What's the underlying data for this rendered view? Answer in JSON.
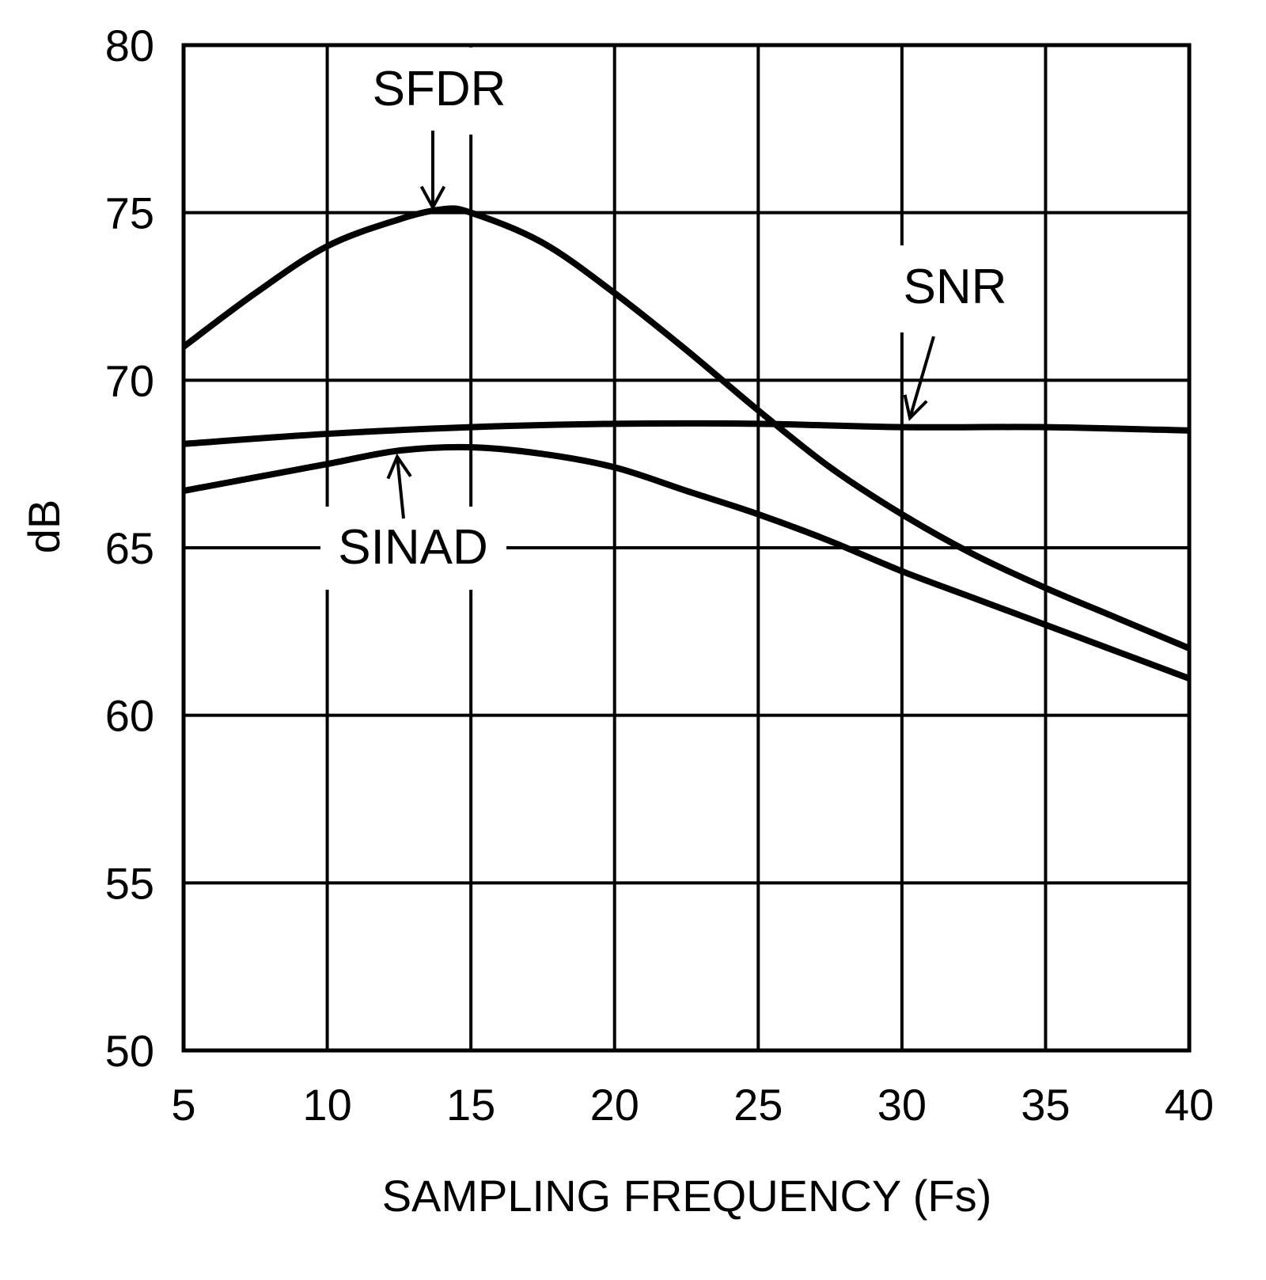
{
  "chart_data": {
    "type": "line",
    "title": "",
    "xlabel": "SAMPLING FREQUENCY (Fs)",
    "ylabel": "dB",
    "xlim": [
      5,
      40
    ],
    "ylim": [
      50,
      80
    ],
    "xticks": [
      "5",
      "10",
      "15",
      "20",
      "25",
      "30",
      "35",
      "40"
    ],
    "yticks": [
      "50",
      "55",
      "60",
      "65",
      "70",
      "75",
      "80"
    ],
    "grid": true,
    "line_color": "#000000",
    "series": [
      {
        "name": "SFDR",
        "x": [
          5,
          7.5,
          10,
          12.5,
          14,
          15,
          17.5,
          20,
          22.5,
          25,
          27.5,
          30,
          32.5,
          35,
          37.5,
          40
        ],
        "y": [
          71.0,
          72.6,
          74.0,
          74.8,
          75.1,
          75.0,
          74.1,
          72.6,
          70.9,
          69.1,
          67.4,
          66.0,
          64.8,
          63.8,
          62.9,
          62.0
        ]
      },
      {
        "name": "SNR",
        "x": [
          5,
          10,
          15,
          20,
          25,
          30,
          35,
          40
        ],
        "y": [
          68.1,
          68.4,
          68.6,
          68.7,
          68.7,
          68.6,
          68.6,
          68.5
        ]
      },
      {
        "name": "SINAD",
        "x": [
          5,
          7.5,
          10,
          12.5,
          15,
          17.5,
          20,
          22.5,
          25,
          27.5,
          30,
          32.5,
          35,
          37.5,
          40
        ],
        "y": [
          66.7,
          67.1,
          67.5,
          67.9,
          68.0,
          67.8,
          67.4,
          66.7,
          66.0,
          65.2,
          64.3,
          63.5,
          62.7,
          61.9,
          61.1
        ]
      }
    ]
  }
}
